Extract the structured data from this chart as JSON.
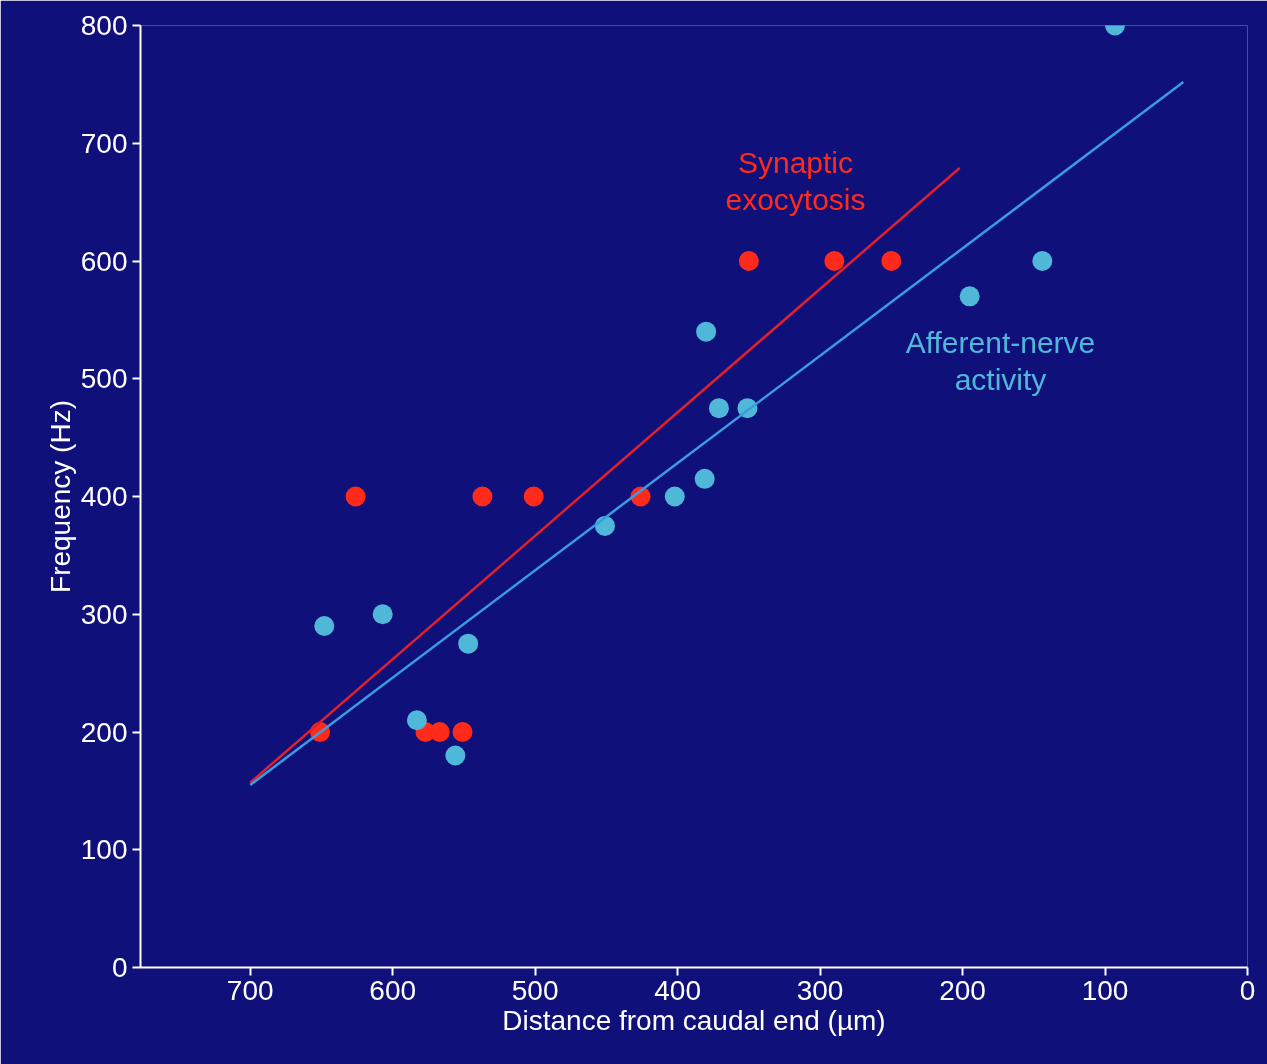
{
  "chart_data": {
    "type": "scatter",
    "xlabel": "Distance from caudal end (µm)",
    "ylabel": "Frequency (Hz)",
    "xlim": [
      777,
      0
    ],
    "ylim": [
      0,
      800
    ],
    "xticks": [
      700,
      600,
      500,
      400,
      300,
      200,
      100,
      0
    ],
    "yticks": [
      0,
      100,
      200,
      300,
      400,
      500,
      600,
      700,
      800
    ],
    "grid": false,
    "series": [
      {
        "name": "Synaptic exocytosis",
        "marker": "circle",
        "color": "#ff2a1a",
        "x": [
          651,
          626,
          577,
          567,
          551,
          537,
          501,
          426,
          350,
          290,
          250
        ],
        "values": [
          200,
          400,
          200,
          200,
          200,
          400,
          400,
          400,
          600,
          600,
          600
        ]
      },
      {
        "name": "Afferent-nerve activity",
        "marker": "circle",
        "color": "#4fb8d8",
        "x": [
          648,
          607,
          583,
          556,
          547,
          451,
          402,
          381,
          380,
          371,
          351,
          195,
          144,
          93
        ],
        "values": [
          290,
          300,
          210,
          180,
          275,
          375,
          400,
          415,
          540,
          475,
          475,
          570,
          600,
          800
        ]
      },
      {
        "type": "line",
        "color": "#e0202a",
        "x": [
          700,
          202
        ],
        "values": [
          157,
          679
        ]
      },
      {
        "type": "line",
        "color": "#3a9be0",
        "x": [
          700,
          45
        ],
        "values": [
          155,
          752
        ]
      }
    ]
  }
}
